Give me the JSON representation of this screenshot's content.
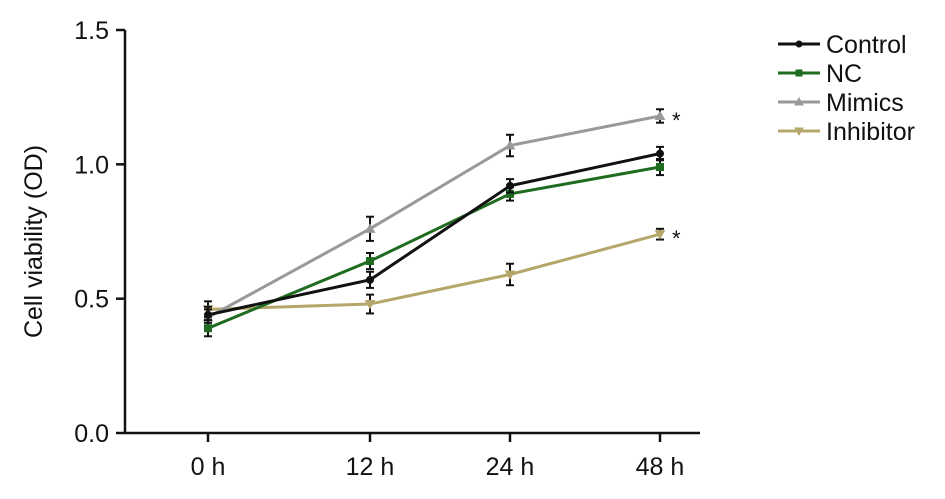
{
  "chart_data": {
    "type": "line",
    "categories": [
      "0 h",
      "12 h",
      "24 h",
      "48 h"
    ],
    "xlabel": "",
    "ylabel": "Cell viability (OD)",
    "ylim": [
      0,
      1.5
    ],
    "yticks": [
      0.0,
      0.5,
      1.0,
      1.5
    ],
    "ytick_labels": [
      "0.0",
      "0.5",
      "1.0",
      "1.5"
    ],
    "grid": false,
    "legend": "right",
    "series": [
      {
        "name": "Control",
        "marker": "circle",
        "color": "#111111",
        "values": [
          0.44,
          0.57,
          0.92,
          1.04
        ],
        "errors": [
          0.03,
          0.03,
          0.025,
          0.025
        ]
      },
      {
        "name": "NC",
        "marker": "square",
        "color": "#1f6b1f",
        "values": [
          0.39,
          0.64,
          0.89,
          0.99
        ],
        "errors": [
          0.03,
          0.03,
          0.025,
          0.03
        ]
      },
      {
        "name": "Mimics",
        "marker": "triangle-up",
        "color": "#999999",
        "values": [
          0.43,
          0.76,
          1.07,
          1.18
        ],
        "errors": [
          0.03,
          0.045,
          0.04,
          0.025
        ]
      },
      {
        "name": "Inhibitor",
        "marker": "triangle-down",
        "color": "#b5a76a",
        "values": [
          0.46,
          0.48,
          0.59,
          0.74
        ],
        "errors": [
          0.03,
          0.035,
          0.04,
          0.02
        ]
      }
    ],
    "annotations": [
      {
        "text": "*",
        "series": "Mimics",
        "category": "48 h"
      },
      {
        "text": "*",
        "series": "Inhibitor",
        "category": "48 h"
      }
    ]
  }
}
